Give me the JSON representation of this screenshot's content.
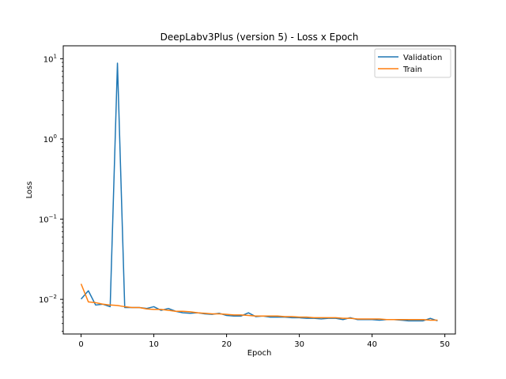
{
  "chart_data": {
    "type": "line",
    "title": "DeepLabv3Plus (version 5) - Loss x Epoch",
    "xlabel": "Epoch",
    "ylabel": "Loss",
    "yscale": "log",
    "xlim": [
      -2.45,
      51.45
    ],
    "ylim": [
      0.0037,
      14.5
    ],
    "xticks": [
      0,
      10,
      20,
      30,
      40,
      50
    ],
    "yticks": [
      {
        "value": 0.01,
        "base": "10",
        "exp": "−2"
      },
      {
        "value": 0.1,
        "base": "10",
        "exp": "−1"
      },
      {
        "value": 1,
        "base": "10",
        "exp": "0"
      },
      {
        "value": 10,
        "base": "10",
        "exp": "1"
      }
    ],
    "grid": false,
    "legend_position": "top-right",
    "x": [
      0,
      1,
      2,
      3,
      4,
      5,
      6,
      7,
      8,
      9,
      10,
      11,
      12,
      13,
      14,
      15,
      16,
      17,
      18,
      19,
      20,
      21,
      22,
      23,
      24,
      25,
      26,
      27,
      28,
      29,
      30,
      31,
      32,
      33,
      34,
      35,
      36,
      37,
      38,
      39,
      40,
      41,
      42,
      43,
      44,
      45,
      46,
      47,
      48,
      49
    ],
    "series": [
      {
        "name": "Validation",
        "color": "#1f77b4",
        "values": [
          0.0101,
          0.0128,
          0.0085,
          0.0087,
          0.0081,
          8.8,
          0.0079,
          0.0079,
          0.0079,
          0.0077,
          0.0081,
          0.0073,
          0.0077,
          0.0071,
          0.0068,
          0.0067,
          0.0068,
          0.0066,
          0.0065,
          0.0067,
          0.0063,
          0.0062,
          0.0062,
          0.0068,
          0.0061,
          0.0062,
          0.006,
          0.006,
          0.006,
          0.0059,
          0.0059,
          0.0058,
          0.0058,
          0.0057,
          0.0058,
          0.0058,
          0.0056,
          0.0059,
          0.0056,
          0.0056,
          0.0056,
          0.0055,
          0.0056,
          0.0056,
          0.0055,
          0.0054,
          0.0054,
          0.0054,
          0.0058,
          0.0054
        ]
      },
      {
        "name": "Train",
        "color": "#ff7f0e",
        "values": [
          0.0156,
          0.0093,
          0.0091,
          0.0087,
          0.0085,
          0.0084,
          0.0081,
          0.0079,
          0.0079,
          0.0076,
          0.0075,
          0.0075,
          0.0073,
          0.0071,
          0.0071,
          0.007,
          0.0068,
          0.0067,
          0.0066,
          0.0066,
          0.0065,
          0.0064,
          0.0064,
          0.0063,
          0.0062,
          0.0062,
          0.0062,
          0.0062,
          0.0061,
          0.0061,
          0.006,
          0.006,
          0.0059,
          0.0059,
          0.0059,
          0.0059,
          0.0058,
          0.0058,
          0.0057,
          0.0057,
          0.0057,
          0.0057,
          0.0056,
          0.0056,
          0.0056,
          0.0056,
          0.0056,
          0.0056,
          0.0055,
          0.0055
        ]
      }
    ]
  }
}
